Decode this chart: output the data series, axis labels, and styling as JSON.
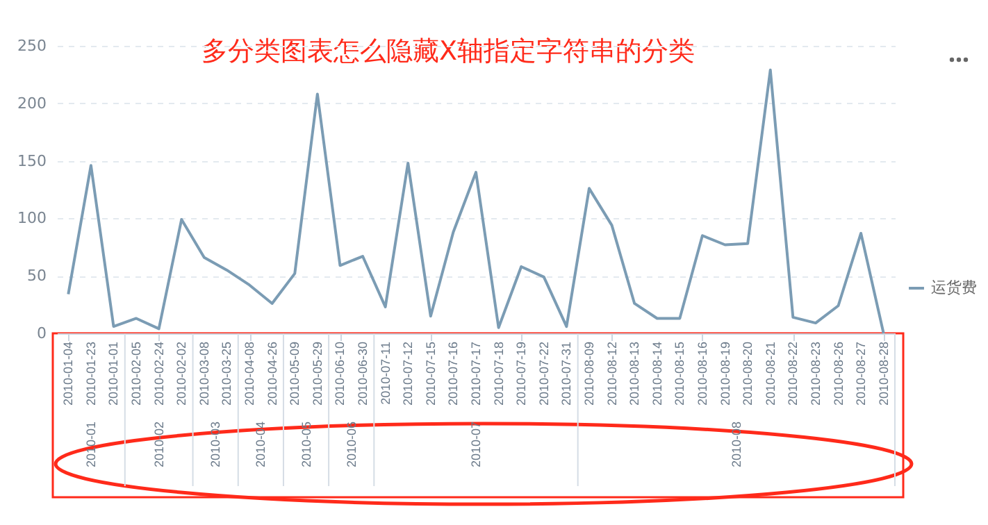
{
  "chart_data": {
    "type": "line",
    "title": "多分类图表怎么隐藏X轴指定字符串的分类",
    "categories": [
      "2010-01-04",
      "2010-01-23",
      "2010-01-01",
      "2010-02-05",
      "2010-02-24",
      "2010-02-02",
      "2010-03-08",
      "2010-03-25",
      "2010-04-08",
      "2010-04-26",
      "2010-05-09",
      "2010-05-29",
      "2010-06-10",
      "2010-06-30",
      "2010-07-11",
      "2010-07-12",
      "2010-07-15",
      "2010-07-16",
      "2010-07-17",
      "2010-07-18",
      "2010-07-19",
      "2010-07-22",
      "2010-07-31",
      "2010-08-09",
      "2010-08-12",
      "2010-08-13",
      "2010-08-14",
      "2010-08-15",
      "2010-08-16",
      "2010-08-19",
      "2010-08-20",
      "2010-08-21",
      "2010-08-22",
      "2010-08-23",
      "2010-08-26",
      "2010-08-27",
      "2010-08-28"
    ],
    "annotations": [
      "2010-01",
      "2010-02",
      "2010-03",
      "2010-04",
      "2010-05",
      "2010-06",
      "2010-07",
      "2010-08"
    ],
    "series": [
      {
        "name": "运货费",
        "color": "#7b9cb4",
        "values": [
          34,
          146,
          6,
          13,
          4,
          99,
          66,
          55,
          42,
          26,
          52,
          208,
          59,
          67,
          23,
          148,
          15,
          88,
          140,
          5,
          58,
          49,
          6,
          126,
          94,
          26,
          13,
          13,
          85,
          77,
          78,
          229,
          14,
          9,
          24,
          87,
          0
        ]
      }
    ],
    "ylim": [
      0,
      250
    ],
    "yticks": [
      0,
      50,
      100,
      150,
      200,
      250
    ],
    "grid": "y",
    "legend": "right",
    "marker": "none",
    "line_style": "solid"
  }
}
